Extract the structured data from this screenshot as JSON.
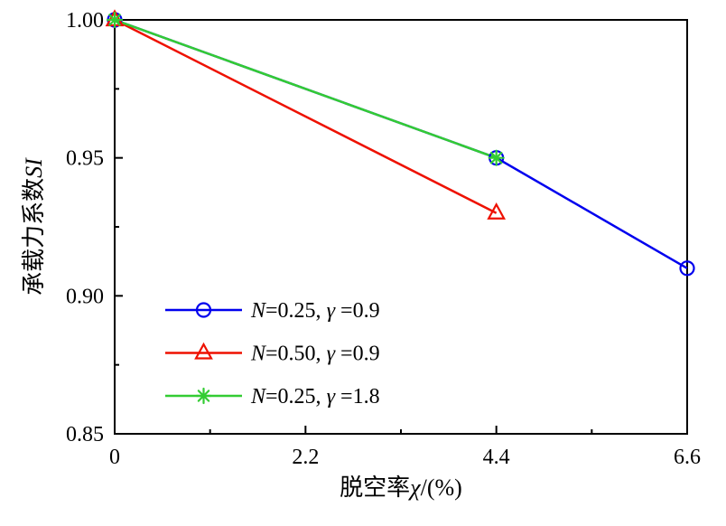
{
  "chart_data": {
    "type": "line",
    "title": "",
    "xlabel": "脱空率χ/(%)",
    "ylabel": "承载力系数SI",
    "xlim": [
      0,
      6.6
    ],
    "ylim": [
      0.85,
      1.0
    ],
    "x_ticks": [
      {
        "value": 0,
        "label": "0"
      },
      {
        "value": 2.2,
        "label": "2.2"
      },
      {
        "value": 4.4,
        "label": "4.4"
      },
      {
        "value": 6.6,
        "label": "6.6"
      }
    ],
    "y_ticks": [
      {
        "value": 0.85,
        "label": "0.85"
      },
      {
        "value": 0.9,
        "label": "0.90"
      },
      {
        "value": 0.95,
        "label": "0.95"
      },
      {
        "value": 1.0,
        "label": "1.00"
      }
    ],
    "x_minor_ticks": [
      1.1,
      3.3,
      5.5
    ],
    "y_minor_ticks": [
      0.875,
      0.925,
      0.975
    ],
    "grid": false,
    "legend_position": "inside-lower-left",
    "axis_color": "#000000",
    "series": [
      {
        "name": "N=0.25, γ =0.9",
        "color": "#0000ee",
        "marker": "circle",
        "x": [
          0,
          4.4,
          6.6
        ],
        "y": [
          1.0,
          0.95,
          0.91
        ]
      },
      {
        "name": "N=0.50, γ =0.9",
        "color": "#ee1100",
        "marker": "triangle",
        "x": [
          0,
          4.4
        ],
        "y": [
          1.0,
          0.93
        ]
      },
      {
        "name": "N=0.25, γ =1.8",
        "color": "#33cc33",
        "marker": "asterisk",
        "x": [
          0,
          4.4
        ],
        "y": [
          1.0,
          0.95
        ]
      }
    ]
  }
}
